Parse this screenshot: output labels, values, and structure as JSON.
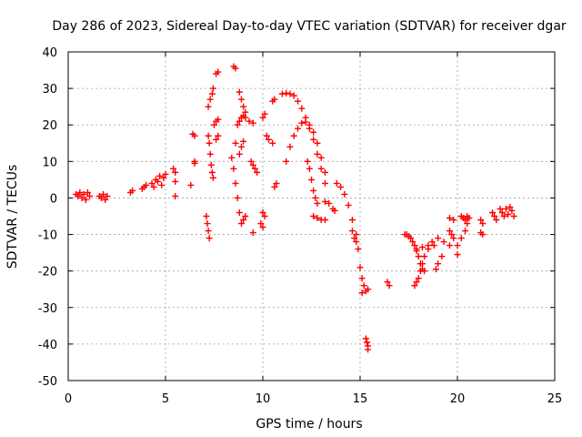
{
  "chart_data": {
    "type": "scatter",
    "title": "Day 286 of 2023, Sidereal Day-to-day VTEC variation (SDTVAR) for receiver dgar",
    "xlabel": "GPS time / hours",
    "ylabel": "SDTVAR / TECUs",
    "xlim": [
      0,
      25
    ],
    "ylim": [
      -50,
      40
    ],
    "xticks": [
      0,
      5,
      10,
      15,
      20,
      25
    ],
    "yticks": [
      -50,
      -40,
      -30,
      -20,
      -10,
      0,
      10,
      20,
      30,
      40
    ],
    "grid": true,
    "marker": "+",
    "color": "#ff0000",
    "series": [
      {
        "name": "SDTVAR",
        "points": [
          [
            0.4,
            1.0
          ],
          [
            0.5,
            0.5
          ],
          [
            0.6,
            1.5
          ],
          [
            0.7,
            0.0
          ],
          [
            0.8,
            1.0
          ],
          [
            0.9,
            -0.5
          ],
          [
            1.0,
            1.5
          ],
          [
            1.1,
            0.5
          ],
          [
            1.6,
            0.5
          ],
          [
            1.7,
            0.0
          ],
          [
            1.8,
            1.0
          ],
          [
            1.9,
            -0.5
          ],
          [
            2.0,
            0.5
          ],
          [
            3.2,
            1.5
          ],
          [
            3.3,
            2.0
          ],
          [
            3.8,
            2.5
          ],
          [
            3.9,
            3.0
          ],
          [
            4.0,
            3.5
          ],
          [
            4.3,
            4.0
          ],
          [
            4.4,
            3.0
          ],
          [
            4.5,
            5.0
          ],
          [
            4.6,
            4.5
          ],
          [
            4.7,
            6.0
          ],
          [
            4.8,
            3.5
          ],
          [
            4.9,
            5.5
          ],
          [
            5.0,
            6.5
          ],
          [
            5.4,
            8.0
          ],
          [
            5.5,
            7.0
          ],
          [
            5.5,
            4.5
          ],
          [
            5.5,
            0.5
          ],
          [
            6.3,
            3.5
          ],
          [
            6.4,
            17.5
          ],
          [
            6.5,
            17.0
          ],
          [
            6.5,
            10.0
          ],
          [
            6.5,
            9.5
          ],
          [
            7.1,
            -5.0
          ],
          [
            7.15,
            -7.0
          ],
          [
            7.2,
            -9.0
          ],
          [
            7.25,
            -11.0
          ],
          [
            7.2,
            17.0
          ],
          [
            7.25,
            15.0
          ],
          [
            7.3,
            12.0
          ],
          [
            7.35,
            9.0
          ],
          [
            7.4,
            7.0
          ],
          [
            7.45,
            5.5
          ],
          [
            7.2,
            25.0
          ],
          [
            7.3,
            27.0
          ],
          [
            7.4,
            28.5
          ],
          [
            7.45,
            30.0
          ],
          [
            7.5,
            20.0
          ],
          [
            7.6,
            21.0
          ],
          [
            7.7,
            21.5
          ],
          [
            7.6,
            34.0
          ],
          [
            7.7,
            34.5
          ],
          [
            7.6,
            16.0
          ],
          [
            7.7,
            17.0
          ],
          [
            8.5,
            36.0
          ],
          [
            8.6,
            35.5
          ],
          [
            8.4,
            11.0
          ],
          [
            8.5,
            8.0
          ],
          [
            8.6,
            4.0
          ],
          [
            8.7,
            0.0
          ],
          [
            8.8,
            -4.0
          ],
          [
            8.9,
            -7.0
          ],
          [
            9.0,
            -6.0
          ],
          [
            9.1,
            -5.0
          ],
          [
            8.6,
            15.0
          ],
          [
            8.7,
            20.0
          ],
          [
            8.8,
            21.0
          ],
          [
            8.9,
            22.0
          ],
          [
            9.0,
            22.5
          ],
          [
            9.1,
            22.0
          ],
          [
            9.3,
            21.0
          ],
          [
            9.5,
            20.5
          ],
          [
            8.8,
            29.0
          ],
          [
            8.9,
            27.0
          ],
          [
            9.0,
            25.0
          ],
          [
            9.1,
            23.5
          ],
          [
            8.8,
            12.0
          ],
          [
            8.9,
            14.0
          ],
          [
            9.0,
            15.5
          ],
          [
            9.4,
            10.0
          ],
          [
            9.5,
            9.0
          ],
          [
            9.6,
            8.0
          ],
          [
            9.7,
            7.0
          ],
          [
            9.5,
            -9.5
          ],
          [
            10.0,
            22.0
          ],
          [
            10.1,
            23.0
          ],
          [
            10.2,
            17.0
          ],
          [
            10.3,
            16.0
          ],
          [
            10.5,
            15.0
          ],
          [
            10.0,
            -4.0
          ],
          [
            10.1,
            -5.0
          ],
          [
            9.9,
            -7.0
          ],
          [
            10.0,
            -8.0
          ],
          [
            10.6,
            3.0
          ],
          [
            10.7,
            4.0
          ],
          [
            10.5,
            26.5
          ],
          [
            10.6,
            27.0
          ],
          [
            11.0,
            28.5
          ],
          [
            11.2,
            28.7
          ],
          [
            11.4,
            28.5
          ],
          [
            11.6,
            28.0
          ],
          [
            11.8,
            26.5
          ],
          [
            12.0,
            24.5
          ],
          [
            12.2,
            22.0
          ],
          [
            12.4,
            19.0
          ],
          [
            12.6,
            16.0
          ],
          [
            12.8,
            12.0
          ],
          [
            13.0,
            8.0
          ],
          [
            13.2,
            4.0
          ],
          [
            11.2,
            10.0
          ],
          [
            11.4,
            14.0
          ],
          [
            11.6,
            17.0
          ],
          [
            11.8,
            19.0
          ],
          [
            12.0,
            20.5
          ],
          [
            12.2,
            20.8
          ],
          [
            12.4,
            20.0
          ],
          [
            12.6,
            18.0
          ],
          [
            12.8,
            15.0
          ],
          [
            13.0,
            11.0
          ],
          [
            13.2,
            7.0
          ],
          [
            12.3,
            10.0
          ],
          [
            12.4,
            8.0
          ],
          [
            12.5,
            5.0
          ],
          [
            12.6,
            2.0
          ],
          [
            12.7,
            0.0
          ],
          [
            12.8,
            -1.5
          ],
          [
            12.6,
            -5.0
          ],
          [
            12.8,
            -5.5
          ],
          [
            13.0,
            -6.0
          ],
          [
            13.2,
            -6.0
          ],
          [
            13.2,
            -1.0
          ],
          [
            13.4,
            -1.5
          ],
          [
            13.6,
            -3.0
          ],
          [
            13.7,
            -3.5
          ],
          [
            13.8,
            4.0
          ],
          [
            14.0,
            3.0
          ],
          [
            14.2,
            1.0
          ],
          [
            14.4,
            -2.0
          ],
          [
            14.6,
            -6.0
          ],
          [
            14.8,
            -10.0
          ],
          [
            14.6,
            -9.0
          ],
          [
            14.7,
            -11.0
          ],
          [
            14.8,
            -12.0
          ],
          [
            14.9,
            -14.0
          ],
          [
            15.0,
            -19.0
          ],
          [
            15.1,
            -22.0
          ],
          [
            15.2,
            -24.0
          ],
          [
            15.1,
            -26.0
          ],
          [
            15.3,
            -25.5
          ],
          [
            15.4,
            -25.0
          ],
          [
            15.3,
            -38.5
          ],
          [
            15.35,
            -39.5
          ],
          [
            15.4,
            -40.5
          ],
          [
            15.4,
            -41.5
          ],
          [
            16.4,
            -23.0
          ],
          [
            16.5,
            -24.0
          ],
          [
            17.3,
            -10.0
          ],
          [
            17.4,
            -10.0
          ],
          [
            17.5,
            -10.5
          ],
          [
            17.6,
            -11.0
          ],
          [
            17.7,
            -12.0
          ],
          [
            17.8,
            -13.0
          ],
          [
            17.9,
            -14.5
          ],
          [
            18.0,
            -16.0
          ],
          [
            18.1,
            -18.0
          ],
          [
            18.2,
            -19.5
          ],
          [
            18.3,
            -20.0
          ],
          [
            17.8,
            -24.0
          ],
          [
            17.9,
            -23.0
          ],
          [
            18.0,
            -22.0
          ],
          [
            18.1,
            -20.0
          ],
          [
            18.2,
            -18.0
          ],
          [
            18.3,
            -16.0
          ],
          [
            18.5,
            -14.0
          ],
          [
            18.7,
            -12.0
          ],
          [
            19.0,
            -11.0
          ],
          [
            19.3,
            -12.0
          ],
          [
            19.6,
            -13.0
          ],
          [
            17.9,
            -14.0
          ],
          [
            18.2,
            -13.5
          ],
          [
            18.5,
            -13.0
          ],
          [
            18.8,
            -13.0
          ],
          [
            18.9,
            -19.5
          ],
          [
            19.0,
            -18.0
          ],
          [
            19.2,
            -16.0
          ],
          [
            19.6,
            -9.0
          ],
          [
            19.7,
            -10.0
          ],
          [
            19.8,
            -11.0
          ],
          [
            19.6,
            -5.5
          ],
          [
            19.8,
            -6.0
          ],
          [
            20.0,
            -15.5
          ],
          [
            20.2,
            -5.0
          ],
          [
            20.3,
            -5.5
          ],
          [
            20.4,
            -6.0
          ],
          [
            20.5,
            -5.0
          ],
          [
            20.6,
            -5.5
          ],
          [
            20.0,
            -13.0
          ],
          [
            20.2,
            -11.0
          ],
          [
            20.4,
            -9.0
          ],
          [
            20.5,
            -7.0
          ],
          [
            21.2,
            -6.0
          ],
          [
            21.3,
            -7.0
          ],
          [
            21.2,
            -9.5
          ],
          [
            21.3,
            -10.0
          ],
          [
            21.8,
            -4.0
          ],
          [
            21.9,
            -5.0
          ],
          [
            22.0,
            -6.0
          ],
          [
            22.2,
            -3.0
          ],
          [
            22.3,
            -4.0
          ],
          [
            22.4,
            -5.0
          ],
          [
            22.5,
            -3.0
          ],
          [
            22.6,
            -4.5
          ],
          [
            22.7,
            -2.5
          ],
          [
            22.8,
            -3.5
          ],
          [
            22.9,
            -5.0
          ]
        ]
      }
    ]
  }
}
